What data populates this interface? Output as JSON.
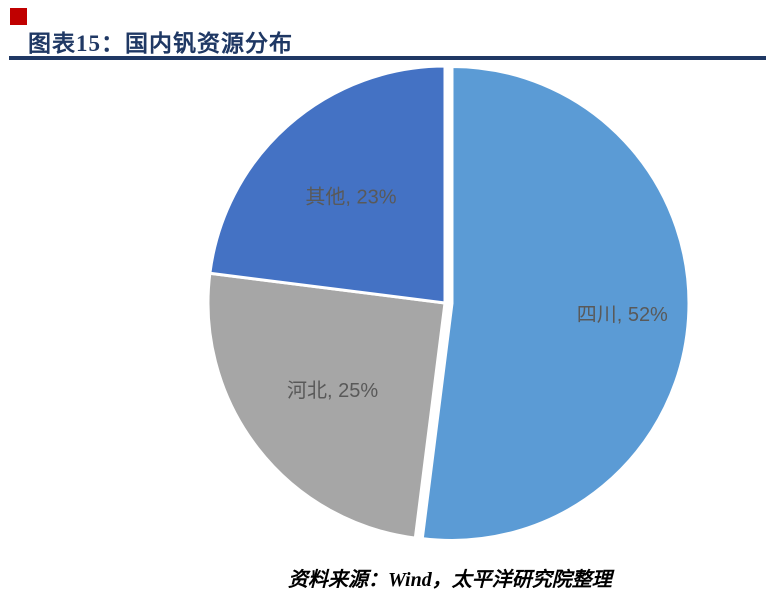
{
  "header": {
    "title": "图表15：国内钒资源分布",
    "title_color": "#1f3864",
    "marker_color": "#c00000",
    "underline_color": "#1f3864"
  },
  "chart_data": {
    "type": "pie",
    "title": "国内钒资源分布",
    "categories": [
      "四川",
      "河北",
      "其他"
    ],
    "values": [
      52,
      25,
      23
    ],
    "unit": "%",
    "colors": [
      "#5b9bd5",
      "#a6a6a6",
      "#4472c4"
    ],
    "data_labels": [
      "四川, 52%",
      "河北, 25%",
      "其他, 23%"
    ],
    "label_color": "#595959",
    "start_angle_deg": 0,
    "direction": "clockwise",
    "legend": "none",
    "explode": [
      7,
      0,
      0
    ],
    "label_r": [
      0.72,
      0.6,
      0.6
    ]
  },
  "footer": {
    "source": "资料来源：Wind，太平洋研究院整理"
  }
}
